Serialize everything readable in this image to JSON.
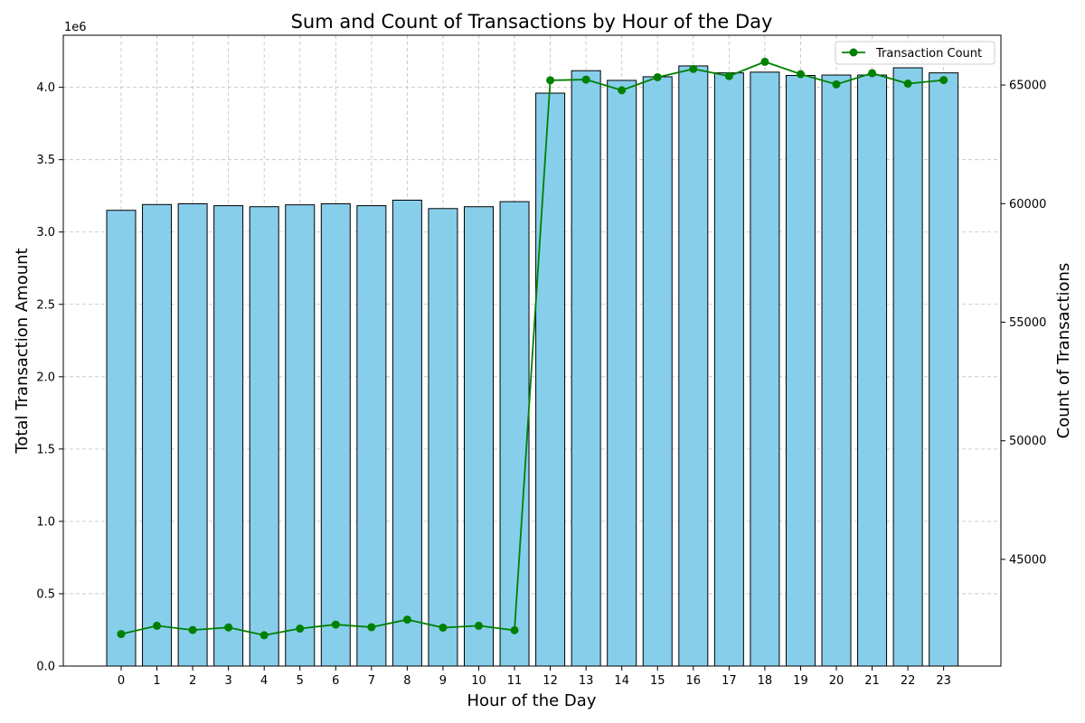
{
  "chart_data": {
    "type": "bar",
    "title": "Sum and Count of Transactions by Hour of the Day",
    "xlabel": "Hour of the Day",
    "ylabel": "Total Transaction Amount",
    "y2label": "Count of Transactions",
    "y_offset_label": "1e6",
    "categories": [
      "0",
      "1",
      "2",
      "3",
      "4",
      "5",
      "6",
      "7",
      "8",
      "9",
      "10",
      "11",
      "12",
      "13",
      "14",
      "15",
      "16",
      "17",
      "18",
      "19",
      "20",
      "21",
      "22",
      "23"
    ],
    "series": [
      {
        "kind": "bar",
        "axis": "left",
        "color": "#87ceeb",
        "values": [
          3150000,
          3190000,
          3195000,
          3182000,
          3175000,
          3188000,
          3195000,
          3182000,
          3220000,
          3162000,
          3175000,
          3210000,
          3960000,
          4115000,
          4048000,
          4073000,
          4148000,
          4100000,
          4105000,
          4082000,
          4085000,
          4085000,
          4135000,
          4100000
        ]
      },
      {
        "kind": "line",
        "axis": "right",
        "name": "Transaction Count",
        "color": "#008000",
        "values": [
          41850,
          42200,
          42020,
          42130,
          41800,
          42080,
          42250,
          42140,
          42460,
          42120,
          42200,
          42010,
          65200,
          65230,
          64780,
          65330,
          65680,
          65380,
          65980,
          65460,
          65030,
          65500,
          65060,
          65210
        ]
      }
    ],
    "ylim": [
      0,
      4360000
    ],
    "y_ticks": [
      0,
      500000,
      1000000,
      1500000,
      2000000,
      2500000,
      3000000,
      3500000,
      4000000
    ],
    "y_tick_labels": [
      "0.0",
      "0.5",
      "1.0",
      "1.5",
      "2.0",
      "2.5",
      "3.0",
      "3.5",
      "4.0"
    ],
    "y2lim": [
      40500,
      67100
    ],
    "y2_ticks": [
      45000,
      50000,
      55000,
      60000,
      65000
    ],
    "y2_tick_labels": [
      "45000",
      "50000",
      "55000",
      "60000",
      "65000"
    ],
    "grid": true,
    "legend_position": "top-right"
  }
}
